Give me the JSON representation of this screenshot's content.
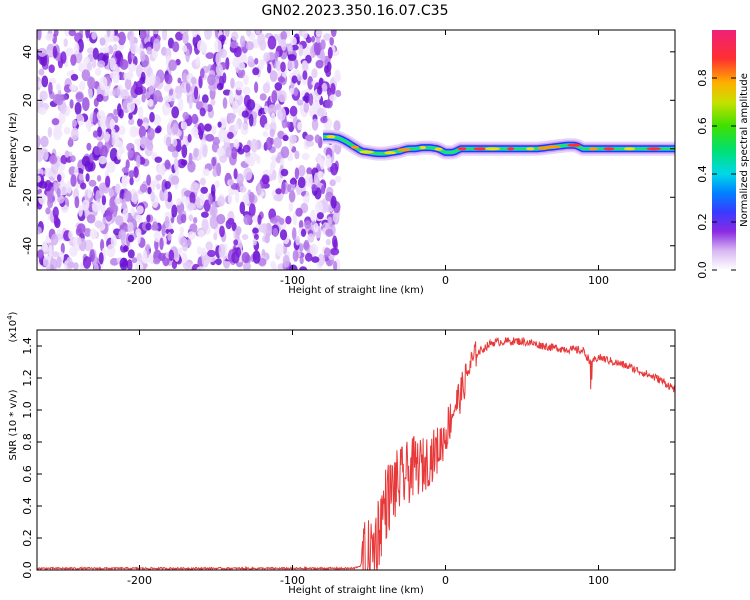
{
  "figure_title": "GN02.2023.350.16.07.C35",
  "chart_data": [
    {
      "type": "heatmap",
      "xlabel": "Height of straight line (km)",
      "ylabel": "Frequency (Hz)",
      "xlim": [
        -267,
        150
      ],
      "ylim": [
        -50,
        49
      ],
      "x_ticks": [
        -200,
        -100,
        0,
        100
      ],
      "x_tick_labels": [
        "-200",
        "-100",
        "0",
        "100"
      ],
      "y_ticks": [
        -40,
        -20,
        0,
        20,
        40
      ],
      "y_tick_labels": [
        "-40",
        "-20",
        "0",
        "20",
        "40"
      ],
      "noise_region_x": [
        -267,
        -70
      ],
      "signal_track": {
        "x": [
          -80,
          -75,
          -70,
          -65,
          -60,
          -55,
          -50,
          -45,
          -40,
          -35,
          -30,
          -25,
          -20,
          -15,
          -10,
          -5,
          0,
          5,
          10,
          20,
          40,
          60,
          80,
          85,
          90,
          100,
          120,
          150
        ],
        "y": [
          5,
          5,
          4.5,
          3,
          1,
          -1,
          -1.5,
          -2,
          -2,
          -1.5,
          -1,
          0,
          0,
          0.5,
          0.5,
          0,
          -1.5,
          -1.5,
          0,
          0,
          0,
          0,
          1.5,
          1.5,
          0,
          0,
          0,
          0
        ]
      },
      "colorbar": {
        "label": "Normalized spectral amplitude",
        "range": [
          0,
          1
        ],
        "ticks": [
          0.0,
          0.2,
          0.4,
          0.6,
          0.8
        ],
        "tick_labels": [
          "0.0",
          "0.2",
          "0.4",
          "0.6",
          "0.8"
        ]
      },
      "grid": false
    },
    {
      "type": "line",
      "xlabel": "Height of straight line (km)",
      "ylabel": "SNR (10 * v/v)",
      "scale_label_main": "(x10",
      "scale_label_exp": "4",
      "scale_label_end": ")",
      "xlim": [
        -267,
        150
      ],
      "ylim": [
        0,
        1.5
      ],
      "x_ticks": [
        -200,
        -100,
        0,
        100
      ],
      "x_tick_labels": [
        "-200",
        "-100",
        "0",
        "100"
      ],
      "y_ticks": [
        0.0,
        0.2,
        0.4,
        0.6,
        0.8,
        1.0,
        1.2,
        1.4
      ],
      "y_tick_labels": [
        "0.0",
        "0.2",
        "0.4",
        "0.6",
        "0.8",
        "1.0",
        "1.2",
        "1.4"
      ],
      "series": [
        {
          "color": "#e8393a",
          "x": [
            -267,
            -200,
            -150,
            -100,
            -60,
            -50,
            -45,
            -40,
            -35,
            -30,
            -25,
            -20,
            -15,
            -10,
            -5,
            0,
            5,
            10,
            15,
            20,
            30,
            40,
            50,
            60,
            70,
            80,
            90,
            95,
            100,
            110,
            120,
            130,
            140,
            150
          ],
          "y": [
            0.01,
            0.01,
            0.01,
            0.01,
            0.01,
            0.05,
            0.2,
            0.4,
            0.5,
            0.55,
            0.6,
            0.65,
            0.65,
            0.7,
            0.75,
            0.85,
            1.0,
            1.1,
            1.25,
            1.35,
            1.42,
            1.43,
            1.43,
            1.41,
            1.39,
            1.38,
            1.37,
            1.3,
            1.33,
            1.3,
            1.27,
            1.23,
            1.19,
            1.13
          ]
        }
      ],
      "grid": false
    }
  ]
}
